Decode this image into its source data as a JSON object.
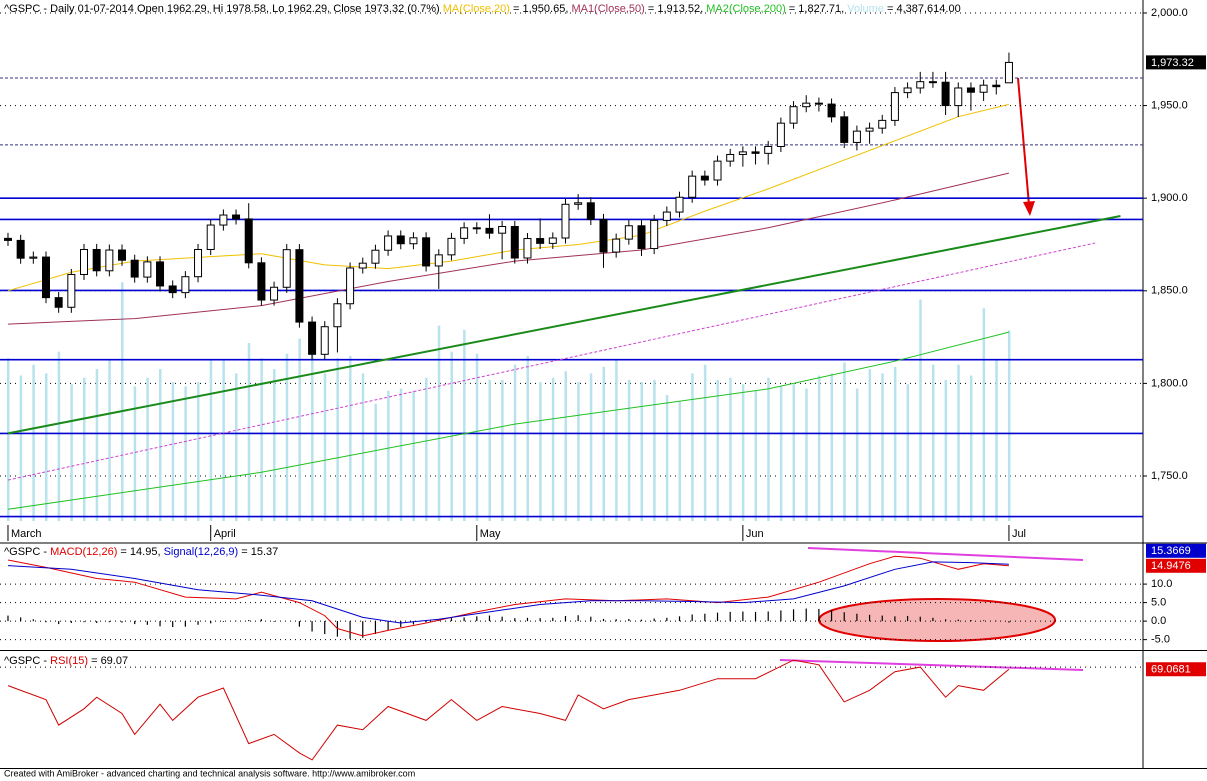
{
  "chart_data": [
    {
      "type": "candlestick",
      "title": "^GSPC - Daily 01-07-2014 Open 1962.29, Hi 1978.58, Lo 1962.29, Close 1973.32 (0.7%) ",
      "xlim": [
        -0.63,
        89.58
      ],
      "ylim": [
        1725.7,
        2007
      ],
      "yticks": [
        {
          "value": 2000,
          "label": "2,000.0"
        },
        {
          "value": 1950,
          "label": "1,950.0"
        },
        {
          "value": 1900,
          "label": "1,900.0"
        },
        {
          "value": 1850,
          "label": "1,850.0"
        },
        {
          "value": 1800,
          "label": "1,800.0"
        },
        {
          "value": 1750,
          "label": "1,750.0"
        }
      ],
      "xticks": [
        {
          "value": 0,
          "label": "March"
        },
        {
          "value": 16,
          "label": "April"
        },
        {
          "value": 37,
          "label": "May"
        },
        {
          "value": 58,
          "label": "Jun"
        },
        {
          "value": 79,
          "label": "Jul"
        }
      ],
      "grid": true,
      "ohlc": [
        [
          1878.3,
          1881.3,
          1874.2,
          1877.2
        ],
        [
          1877.2,
          1880.2,
          1864.6,
          1867.6
        ],
        [
          1867.6,
          1871.2,
          1864.6,
          1868.2
        ],
        [
          1868.2,
          1871.2,
          1843.3,
          1846.3
        ],
        [
          1846.3,
          1849.3,
          1838.1,
          1841.1
        ],
        [
          1841.1,
          1861.8,
          1838.1,
          1858.8
        ],
        [
          1858.8,
          1875.3,
          1855.8,
          1872.3
        ],
        [
          1872.3,
          1875.3,
          1857.8,
          1860.8
        ],
        [
          1860.8,
          1875.0,
          1857.8,
          1872.0
        ],
        [
          1872.0,
          1875.0,
          1863.5,
          1866.5
        ],
        [
          1866.5,
          1869.5,
          1854.4,
          1857.4
        ],
        [
          1857.4,
          1868.6,
          1854.4,
          1865.6
        ],
        [
          1865.6,
          1868.6,
          1849.6,
          1852.6
        ],
        [
          1852.6,
          1855.6,
          1846.0,
          1849.0
        ],
        [
          1849.0,
          1860.6,
          1846.0,
          1857.6
        ],
        [
          1857.6,
          1875.3,
          1854.6,
          1872.3
        ],
        [
          1872.3,
          1888.5,
          1869.3,
          1885.5
        ],
        [
          1885.5,
          1893.9,
          1882.5,
          1890.9
        ],
        [
          1890.9,
          1893.9,
          1885.8,
          1888.8
        ],
        [
          1888.8,
          1897.3,
          1862.1,
          1865.1
        ],
        [
          1865.1,
          1868.1,
          1842.0,
          1845.0
        ],
        [
          1845.0,
          1854.9,
          1842.0,
          1851.9
        ],
        [
          1851.9,
          1875.2,
          1848.9,
          1872.2
        ],
        [
          1872.2,
          1875.2,
          1830.1,
          1833.1
        ],
        [
          1833.1,
          1836.1,
          1812.7,
          1815.7
        ],
        [
          1815.7,
          1833.6,
          1812.7,
          1830.6
        ],
        [
          1830.6,
          1846.0,
          1816.7,
          1843.0
        ],
        [
          1843.0,
          1865.3,
          1840.0,
          1862.3
        ],
        [
          1862.3,
          1867.9,
          1859.3,
          1864.9
        ],
        [
          1864.9,
          1874.9,
          1861.9,
          1871.9
        ],
        [
          1871.9,
          1882.6,
          1868.9,
          1879.6
        ],
        [
          1879.6,
          1882.6,
          1872.4,
          1875.4
        ],
        [
          1875.4,
          1881.6,
          1872.4,
          1878.6
        ],
        [
          1878.6,
          1881.6,
          1860.4,
          1863.4
        ],
        [
          1863.4,
          1872.4,
          1851.0,
          1869.4
        ],
        [
          1869.4,
          1881.3,
          1866.4,
          1878.3
        ],
        [
          1878.3,
          1887.0,
          1875.3,
          1884.0
        ],
        [
          1884.0,
          1887.0,
          1880.7,
          1883.7
        ],
        [
          1883.7,
          1891.3,
          1878.1,
          1881.1
        ],
        [
          1881.1,
          1887.7,
          1867.0,
          1884.7
        ],
        [
          1884.7,
          1887.7,
          1864.7,
          1867.7
        ],
        [
          1867.7,
          1881.2,
          1864.7,
          1878.2
        ],
        [
          1878.2,
          1889.1,
          1872.6,
          1875.6
        ],
        [
          1875.6,
          1881.5,
          1872.6,
          1878.5
        ],
        [
          1878.5,
          1899.7,
          1875.5,
          1896.7
        ],
        [
          1896.7,
          1902.2,
          1893.7,
          1897.5
        ],
        [
          1897.5,
          1900.5,
          1885.5,
          1888.5
        ],
        [
          1888.5,
          1891.5,
          1862.4,
          1870.9
        ],
        [
          1870.9,
          1880.9,
          1867.9,
          1877.9
        ],
        [
          1877.9,
          1888.1,
          1874.9,
          1885.1
        ],
        [
          1885.1,
          1888.1,
          1868.8,
          1872.8
        ],
        [
          1872.8,
          1891.0,
          1869.8,
          1888.0
        ],
        [
          1888.0,
          1895.5,
          1885.0,
          1892.5
        ],
        [
          1892.5,
          1903.5,
          1889.5,
          1900.5
        ],
        [
          1900.5,
          1914.9,
          1897.5,
          1911.9
        ],
        [
          1911.9,
          1914.9,
          1906.8,
          1909.8
        ],
        [
          1909.8,
          1923.0,
          1906.8,
          1920.0
        ],
        [
          1920.0,
          1926.6,
          1917.0,
          1923.6
        ],
        [
          1923.6,
          1928.0,
          1917.0,
          1925.0
        ],
        [
          1925.0,
          1928.0,
          1918.2,
          1924.2
        ],
        [
          1924.2,
          1930.9,
          1918.2,
          1927.9
        ],
        [
          1927.9,
          1943.5,
          1924.9,
          1940.5
        ],
        [
          1940.5,
          1952.4,
          1937.5,
          1949.4
        ],
        [
          1949.4,
          1955.6,
          1946.4,
          1951.3
        ],
        [
          1951.3,
          1954.3,
          1946.8,
          1950.8
        ],
        [
          1950.8,
          1953.8,
          1940.9,
          1943.9
        ],
        [
          1943.9,
          1946.9,
          1927.1,
          1930.1
        ],
        [
          1930.1,
          1939.2,
          1925.8,
          1936.2
        ],
        [
          1936.2,
          1940.8,
          1929.4,
          1937.8
        ],
        [
          1937.8,
          1945.0,
          1934.8,
          1942.0
        ],
        [
          1942.0,
          1960.0,
          1939.0,
          1957.0
        ],
        [
          1957.0,
          1962.5,
          1954.0,
          1959.5
        ],
        [
          1959.5,
          1968.2,
          1956.5,
          1962.9
        ],
        [
          1962.9,
          1968.2,
          1959.6,
          1962.6
        ],
        [
          1962.6,
          1968.2,
          1944.9,
          1950.0
        ],
        [
          1950.0,
          1962.5,
          1943.8,
          1959.5
        ],
        [
          1959.5,
          1962.5,
          1947.3,
          1957.2
        ],
        [
          1957.2,
          1964.0,
          1952.5,
          1961.0
        ],
        [
          1961.0,
          1964.0,
          1956.0,
          1960.2
        ],
        [
          1962.3,
          1978.6,
          1962.3,
          1973.3
        ]
      ],
      "series": [
        {
          "name": "MA(Close,20)",
          "legend_text": " = 1,950.65, ",
          "color": "#f0c000",
          "x": [
            0,
            5,
            10,
            15,
            20,
            25,
            30,
            35,
            40,
            45,
            50,
            55,
            60,
            65,
            70,
            75,
            79
          ],
          "values": [
            1850,
            1860,
            1866,
            1868,
            1870,
            1864,
            1862,
            1866,
            1872,
            1875,
            1880,
            1893,
            1905,
            1918,
            1931,
            1944,
            1950.65
          ]
        },
        {
          "name": "MA1(Close,50)",
          "legend_text": " = 1,913.52, ",
          "color": "#a0305a",
          "x": [
            0,
            10,
            20,
            30,
            40,
            50,
            60,
            70,
            79
          ],
          "values": [
            1832,
            1835,
            1842,
            1855,
            1866,
            1872,
            1884,
            1899,
            1913.52
          ]
        },
        {
          "name": "MA2(Close,200)",
          "legend_text": " = 1,827.71, ",
          "color": "#20c020",
          "x": [
            0,
            20,
            40,
            60,
            70,
            79
          ],
          "values": [
            1732,
            1752,
            1778,
            1797,
            1812,
            1827.71
          ]
        }
      ],
      "volume": {
        "name": "Volume",
        "legend_text": " = 4,387,614.00",
        "color": "#b8e2ec",
        "vlim": [
          0,
          12000000
        ],
        "values": [
          3750000,
          3350000,
          3600000,
          3400000,
          3900000,
          3150000,
          3300000,
          3500000,
          3700000,
          5500000,
          3100000,
          3300000,
          3500000,
          3200000,
          3100000,
          3200000,
          3700000,
          3700000,
          3400000,
          4100000,
          3750000,
          3500000,
          3850000,
          4200000,
          4000000,
          3400000,
          3750000,
          3800000,
          3400000,
          2700000,
          3000000,
          3050000,
          3000000,
          3300000,
          4500000,
          3900000,
          4400000,
          3850000,
          3250000,
          3250000,
          3600000,
          3800000,
          3200000,
          3300000,
          3450000,
          3200000,
          3400000,
          3550000,
          3700000,
          3250000,
          3200000,
          3250000,
          2900000,
          2750000,
          3400000,
          3600000,
          3250000,
          3300000,
          3150000,
          3000000,
          3300000,
          3100000,
          3150000,
          3050000,
          3350000,
          3400000,
          3650000,
          3050000,
          3500000,
          3400000,
          3550000,
          3150000,
          5100000,
          3600000,
          3250000,
          3600000,
          3350000,
          4900000,
          3700000,
          4387614
        ]
      },
      "levels": [
        {
          "value": 1900,
          "color": "#0000d0",
          "dash": false
        },
        {
          "value": 1888.5,
          "color": "#0000d0",
          "dash": false
        },
        {
          "value": 1850.2,
          "color": "#0000d0",
          "dash": false
        },
        {
          "value": 1812.8,
          "color": "#0000d0",
          "dash": false
        },
        {
          "value": 1773,
          "color": "#0000d0",
          "dash": false
        },
        {
          "value": 1728.1,
          "color": "#0000d0",
          "dash": false
        },
        {
          "value": 1964.9,
          "color": "#303080",
          "dash": true
        },
        {
          "value": 1928.8,
          "color": "#303080",
          "dash": true
        }
      ],
      "trendlines": [
        {
          "x": [
            0,
            87.8
          ],
          "values": [
            1773,
            1890.4
          ],
          "color": "#1a8a1a",
          "dash": false
        },
        {
          "x": [
            0,
            85.8
          ],
          "values": [
            1747.8,
            1875.8
          ],
          "color": "#d040d0",
          "dash": true
        }
      ],
      "markers": [
        {
          "value": 1973.32,
          "label": "1,973.32",
          "color": "#000000"
        }
      ]
    },
    {
      "type": "macd",
      "title": "^GSPC - ",
      "xlim": [
        -0.63,
        89.58
      ],
      "ylim": [
        -7.8,
        21.1
      ],
      "yticks": [
        {
          "value": 10,
          "label": "10.0"
        },
        {
          "value": 5,
          "label": "5.0"
        },
        {
          "value": 0,
          "label": "0.0"
        },
        {
          "value": -5,
          "label": "-5.0"
        }
      ],
      "grid": true,
      "series": [
        {
          "name": "MACD(12,26)",
          "legend_text": " = 14.95, ",
          "color": "#e00000",
          "x": [
            0,
            3,
            7,
            10,
            14,
            18,
            20,
            23,
            25,
            26,
            28,
            30,
            33,
            37,
            40,
            44,
            48,
            52,
            56,
            60,
            64,
            68,
            70,
            72,
            75,
            77,
            79
          ],
          "values": [
            16.5,
            14.5,
            11.5,
            10.5,
            6.5,
            6.0,
            7.8,
            5.0,
            1.5,
            -2.0,
            -4.0,
            -2.5,
            -0.5,
            2.5,
            4.5,
            6.0,
            5.5,
            6.0,
            5.0,
            6.5,
            10.5,
            15.5,
            17.5,
            17.0,
            14.0,
            15.5,
            14.95
          ]
        },
        {
          "name": "Signal(12,26,9)",
          "legend_text": " = 15.37",
          "color": "#0000cc",
          "x": [
            0,
            5,
            10,
            15,
            20,
            24,
            28,
            31,
            34,
            38,
            42,
            46,
            50,
            54,
            58,
            62,
            66,
            70,
            73,
            76,
            79
          ],
          "values": [
            15.0,
            14.0,
            11.5,
            8.5,
            7.0,
            5.5,
            1.0,
            -0.5,
            0.5,
            2.5,
            4.5,
            5.5,
            5.5,
            5.3,
            5.0,
            6.0,
            9.5,
            14.0,
            16.0,
            15.8,
            15.37
          ]
        }
      ],
      "histogram": [
        1.5,
        1.0,
        0.5,
        -0.3,
        -0.8,
        -0.5,
        -0.3,
        -0.5,
        -0.3,
        -0.4,
        -0.8,
        -1.0,
        -1.4,
        -1.6,
        -1.5,
        -1.0,
        -0.6,
        -0.2,
        0.1,
        0.3,
        0.5,
        -0.2,
        0.0,
        -1.5,
        -2.8,
        -3.5,
        -4.2,
        -4.8,
        -4.5,
        -3.5,
        -2.5,
        -1.6,
        -0.9,
        -0.3,
        0.4,
        0.8,
        1.0,
        1.3,
        1.5,
        1.2,
        0.8,
        0.9,
        0.8,
        0.9,
        1.4,
        1.6,
        1.2,
        0.6,
        0.5,
        0.6,
        0.4,
        0.7,
        0.9,
        1.3,
        1.8,
        2.0,
        2.3,
        2.5,
        2.6,
        2.5,
        2.6,
        2.9,
        3.2,
        3.4,
        3.3,
        3.0,
        2.4,
        2.0,
        1.7,
        1.5,
        1.3,
        1.4,
        1.2,
        0.9,
        0.5,
        0.4,
        0.3,
        0.2,
        0.1,
        -0.4
      ],
      "markers": [
        {
          "value": 15.3669,
          "color": "#0000cc"
        },
        {
          "value": 14.9476,
          "color": "#e00000"
        }
      ]
    },
    {
      "type": "line",
      "title": "^GSPC - ",
      "xlim": [
        -0.63,
        89.58
      ],
      "ylim": [
        26.5,
        76.5
      ],
      "guide_lines": [
        70
      ],
      "series": [
        {
          "name": "RSI(15)",
          "legend_text": " = 69.07",
          "color": "#d00000",
          "x": [
            0,
            3,
            4,
            6,
            7,
            9,
            10,
            12,
            13,
            15,
            17,
            19,
            21,
            23,
            24,
            26,
            28,
            30,
            33,
            35,
            37,
            39,
            42,
            44,
            45,
            47,
            49,
            53,
            56,
            59,
            62,
            64,
            66,
            68,
            70,
            72,
            74,
            75,
            77,
            79
          ],
          "values": [
            62,
            56,
            45,
            52,
            57,
            50,
            41,
            54,
            47,
            57,
            61,
            37,
            41,
            33,
            30,
            45,
            43,
            53,
            47,
            56,
            47,
            53,
            50,
            47,
            58,
            52,
            56,
            60,
            65,
            65,
            73,
            71,
            55,
            60,
            68,
            70,
            57,
            62,
            60,
            69.07
          ]
        }
      ],
      "markers": [
        {
          "value": 69.0681,
          "color": "#e00000"
        }
      ]
    }
  ],
  "footer": "Created with AmiBroker - advanced charting and technical analysis software. http://www.amibroker.com"
}
